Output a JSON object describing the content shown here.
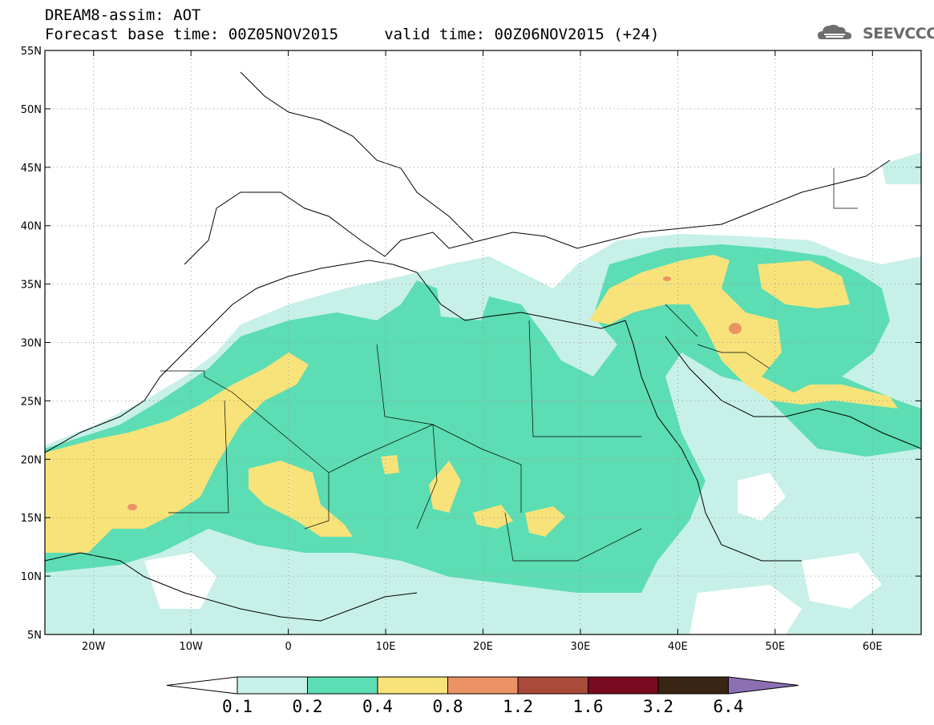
{
  "header": {
    "line1": "DREAM8-assim: AOT",
    "line2": "Forecast base time: 00Z05NOV2015     valid time: 00Z06NOV2015 (+24)"
  },
  "logo": {
    "text": "SEEVCCC",
    "icon": "cloud-logo-icon"
  },
  "map": {
    "lon_range": [
      -25,
      65
    ],
    "lat_range": [
      5,
      55
    ],
    "lat_ticks": [
      {
        "value": 55,
        "label": "55N"
      },
      {
        "value": 50,
        "label": "50N"
      },
      {
        "value": 45,
        "label": "45N"
      },
      {
        "value": 40,
        "label": "40N"
      },
      {
        "value": 35,
        "label": "35N"
      },
      {
        "value": 30,
        "label": "30N"
      },
      {
        "value": 25,
        "label": "25N"
      },
      {
        "value": 20,
        "label": "20N"
      },
      {
        "value": 15,
        "label": "15N"
      },
      {
        "value": 10,
        "label": "10N"
      },
      {
        "value": 5,
        "label": "5N"
      }
    ],
    "lon_ticks": [
      {
        "value": -20,
        "label": "20W"
      },
      {
        "value": -10,
        "label": "10W"
      },
      {
        "value": 0,
        "label": "0"
      },
      {
        "value": 10,
        "label": "10E"
      },
      {
        "value": 20,
        "label": "20E"
      },
      {
        "value": 30,
        "label": "30E"
      },
      {
        "value": 40,
        "label": "40E"
      },
      {
        "value": 50,
        "label": "50E"
      },
      {
        "value": 60,
        "label": "60E"
      }
    ],
    "grid": "dotted",
    "field": "aerosol optical thickness"
  },
  "colorbar": {
    "colors": [
      "#c7f0e8",
      "#5cddb3",
      "#f7e37a",
      "#ec9366",
      "#aa4a3b",
      "#7a0a20",
      "#3a2414",
      "#8b6fb2"
    ],
    "labels": [
      "0.1",
      "0.2",
      "0.4",
      "0.8",
      "1.2",
      "1.6",
      "3.2",
      "6.4"
    ]
  }
}
